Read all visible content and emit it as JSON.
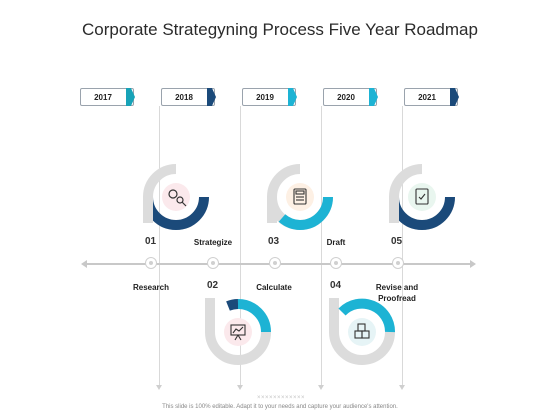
{
  "title": "Corporate Strategyning Process Five Year Roadmap",
  "colors": {
    "teal": "#17a3b8",
    "navy": "#1b4a7a",
    "gray_ring": "#dcdcdc",
    "cyan": "#1db3d4"
  },
  "years": [
    {
      "label": "2017",
      "accent": "#17a3b8"
    },
    {
      "label": "2018",
      "accent": "#1b4a7a"
    },
    {
      "label": "2019",
      "accent": "#1db3d4"
    },
    {
      "label": "2020",
      "accent": "#1db3d4"
    },
    {
      "label": "2021",
      "accent": "#1b4a7a"
    }
  ],
  "steps": [
    {
      "number": "01",
      "label": "Research",
      "icon": "gears-magnifier-icon"
    },
    {
      "number": "02",
      "label": "Strategize",
      "icon": "presentation-board-icon"
    },
    {
      "number": "03",
      "label": "Calculate",
      "icon": "calculator-icon"
    },
    {
      "number": "04",
      "label": "Draft",
      "icon": "building-blocks-icon"
    },
    {
      "number": "05",
      "label": "Revise and Proofread",
      "icon": "document-check-icon"
    }
  ],
  "footer": "This slide is 100% editable. Adapt it to your needs and capture your audience's attention.",
  "divider_marks": "××××××××××××"
}
